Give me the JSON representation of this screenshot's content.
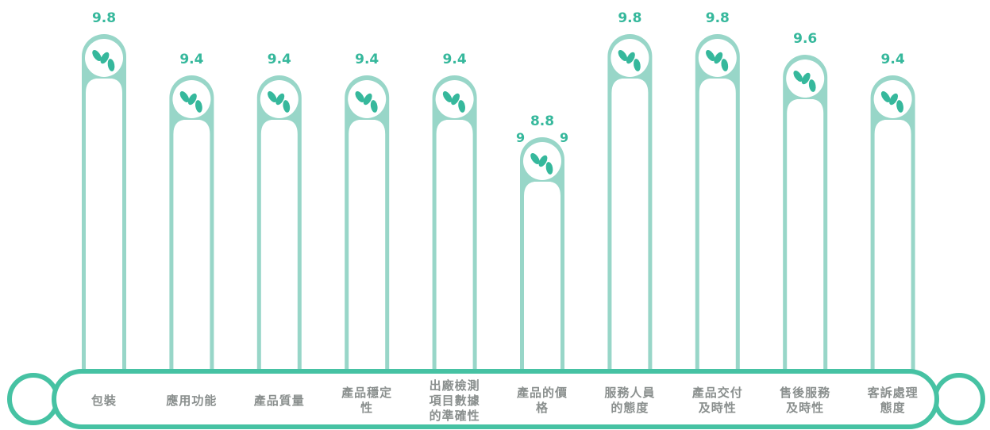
{
  "chart_data": {
    "type": "bar",
    "categories": [
      "包裝",
      "應用功能",
      "產品質量",
      "產品穩定性",
      "出廠檢測項目數據的準確性",
      "產品的價格",
      "服務人員的態度",
      "產品交付及時性",
      "售後服務及時性",
      "客訴處理態度"
    ],
    "values": [
      9.8,
      9.4,
      9.4,
      9.4,
      9.4,
      8.8,
      9.8,
      9.8,
      9.6,
      9.4
    ],
    "title": "",
    "xlabel": "",
    "ylabel": "",
    "grid": false,
    "legend": "none"
  },
  "stray_labels": [
    "9",
    "9"
  ],
  "colors": {
    "bar": "#98d6c8",
    "base": "#46c2a3",
    "value_text": "#36b89c",
    "leaf": "#36b89c",
    "category_text": "#8a8f8e"
  },
  "icons": {
    "bar_head": "leaf-icon"
  }
}
